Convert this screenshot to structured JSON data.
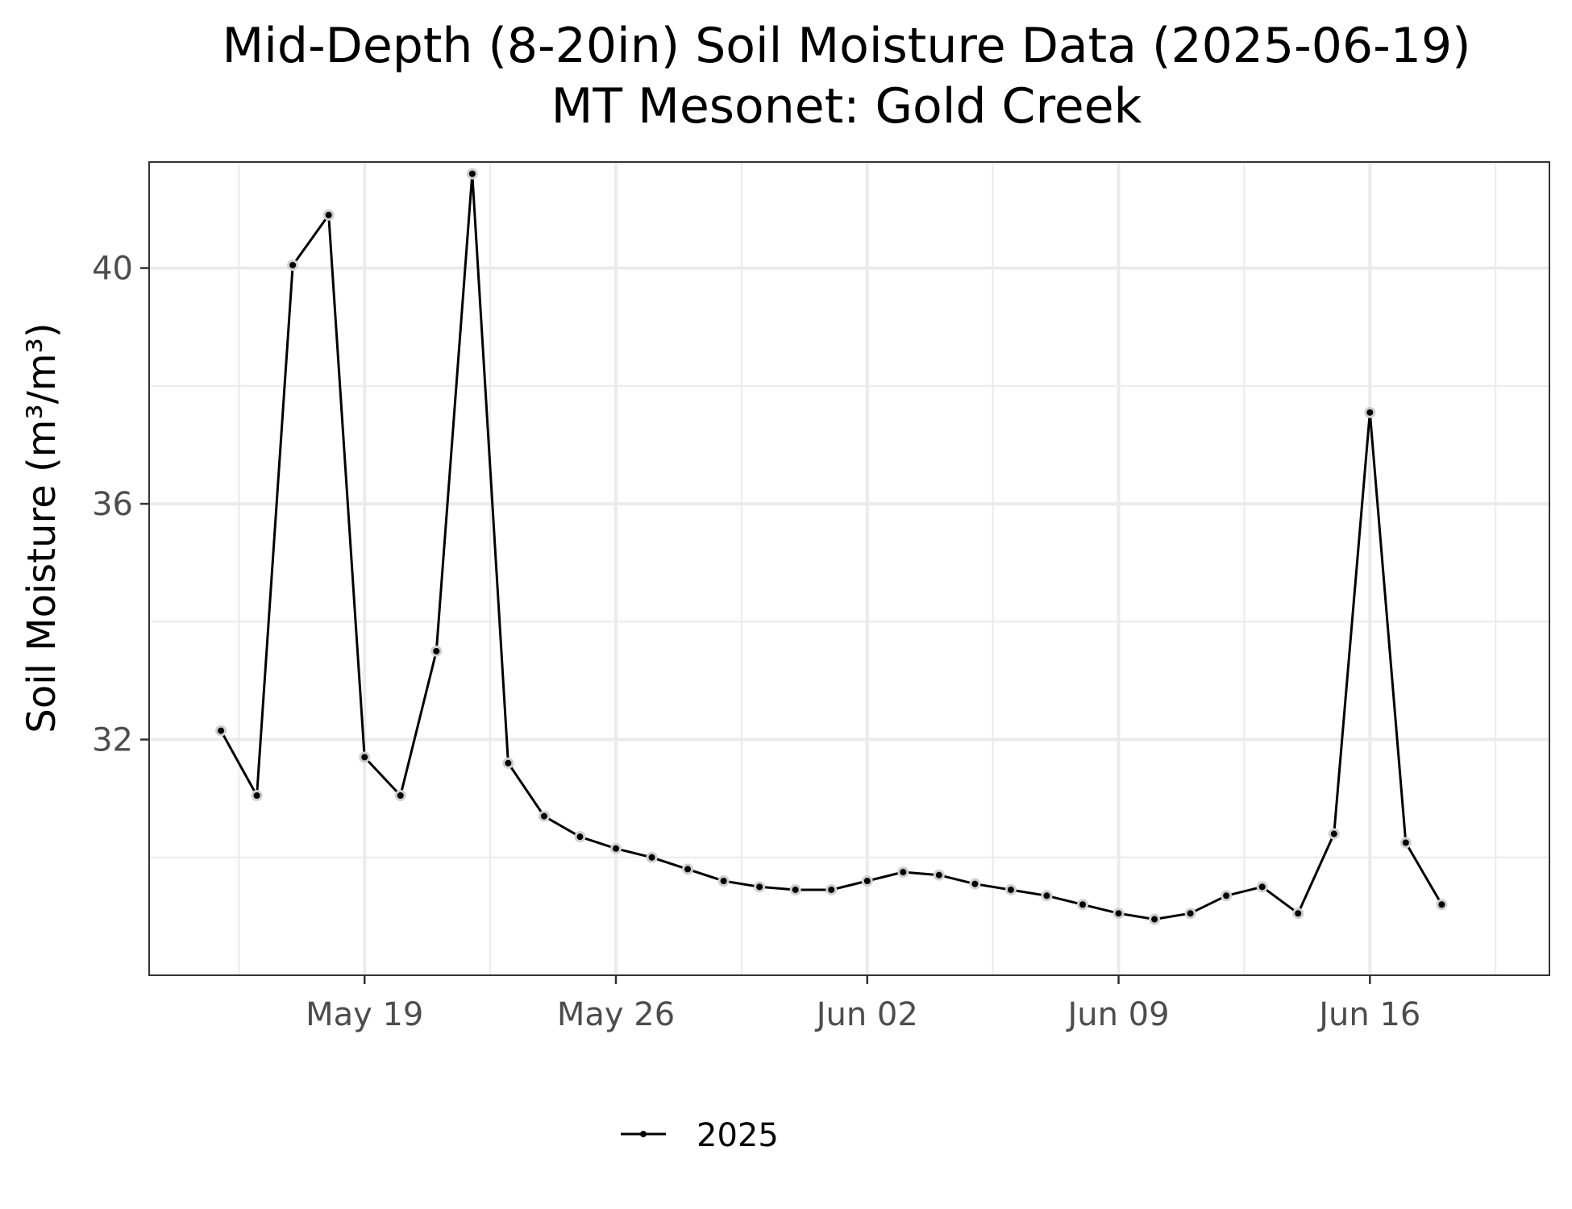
{
  "chart_data": {
    "type": "line",
    "title": "Mid-Depth (8-20in) Soil Moisture Data (2025-06-19)",
    "subtitle": "MT Mesonet: Gold Creek",
    "xlabel": "",
    "ylabel": "Soil Moisture (m³/m³)",
    "ylim": [
      28.0,
      41.8
    ],
    "xlim": [
      "2025-05-13",
      "2025-06-21"
    ],
    "y_ticks": [
      32,
      36,
      40
    ],
    "x_ticks": [
      {
        "date": "2025-05-19",
        "label": "May 19"
      },
      {
        "date": "2025-05-26",
        "label": "May 26"
      },
      {
        "date": "2025-06-02",
        "label": "Jun 02"
      },
      {
        "date": "2025-06-09",
        "label": "Jun 09"
      },
      {
        "date": "2025-06-16",
        "label": "Jun 16"
      }
    ],
    "grid": true,
    "legend_position": "bottom",
    "series": [
      {
        "name": "2025",
        "color": "#000000",
        "points": [
          {
            "x": "2025-05-15",
            "y": 32.15
          },
          {
            "x": "2025-05-16",
            "y": 31.05
          },
          {
            "x": "2025-05-17",
            "y": 40.05
          },
          {
            "x": "2025-05-18",
            "y": 40.9
          },
          {
            "x": "2025-05-19",
            "y": 31.7
          },
          {
            "x": "2025-05-20",
            "y": 31.05
          },
          {
            "x": "2025-05-21",
            "y": 33.5
          },
          {
            "x": "2025-05-22",
            "y": 41.6
          },
          {
            "x": "2025-05-23",
            "y": 31.6
          },
          {
            "x": "2025-05-24",
            "y": 30.7
          },
          {
            "x": "2025-05-25",
            "y": 30.35
          },
          {
            "x": "2025-05-26",
            "y": 30.15
          },
          {
            "x": "2025-05-27",
            "y": 30.0
          },
          {
            "x": "2025-05-28",
            "y": 29.8
          },
          {
            "x": "2025-05-29",
            "y": 29.6
          },
          {
            "x": "2025-05-30",
            "y": 29.5
          },
          {
            "x": "2025-05-31",
            "y": 29.45
          },
          {
            "x": "2025-06-01",
            "y": 29.45
          },
          {
            "x": "2025-06-02",
            "y": 29.6
          },
          {
            "x": "2025-06-03",
            "y": 29.75
          },
          {
            "x": "2025-06-04",
            "y": 29.7
          },
          {
            "x": "2025-06-05",
            "y": 29.55
          },
          {
            "x": "2025-06-06",
            "y": 29.45
          },
          {
            "x": "2025-06-07",
            "y": 29.35
          },
          {
            "x": "2025-06-08",
            "y": 29.2
          },
          {
            "x": "2025-06-09",
            "y": 29.05
          },
          {
            "x": "2025-06-10",
            "y": 28.95
          },
          {
            "x": "2025-06-11",
            "y": 29.05
          },
          {
            "x": "2025-06-12",
            "y": 29.35
          },
          {
            "x": "2025-06-13",
            "y": 29.5
          },
          {
            "x": "2025-06-14",
            "y": 29.05
          },
          {
            "x": "2025-06-15",
            "y": 30.4
          },
          {
            "x": "2025-06-16",
            "y": 37.55
          },
          {
            "x": "2025-06-17",
            "y": 30.25
          },
          {
            "x": "2025-06-18",
            "y": 29.2
          }
        ]
      }
    ]
  }
}
